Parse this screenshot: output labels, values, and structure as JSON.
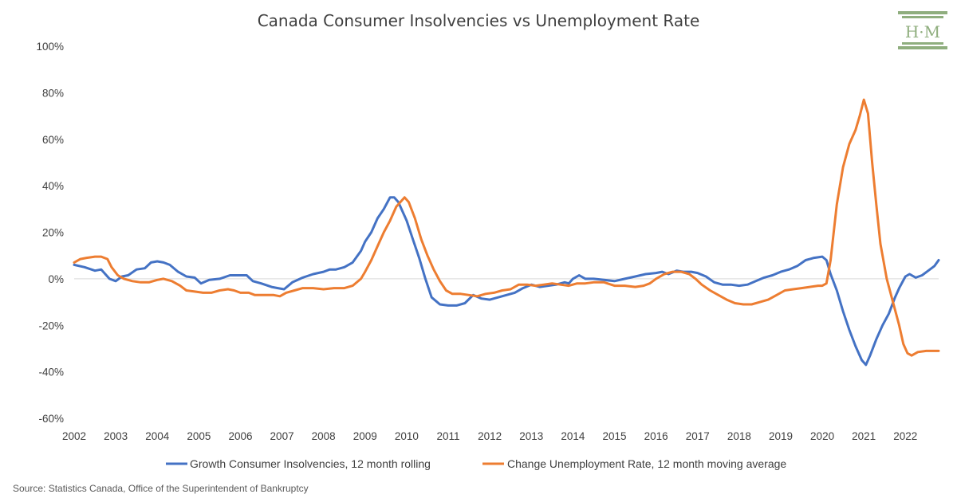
{
  "chart_data": {
    "type": "line",
    "title": "Canada Consumer Insolvencies vs Unemployment Rate",
    "xlabel": "",
    "ylabel": "",
    "x_range": [
      2002,
      2022.8
    ],
    "ylim": [
      -60,
      100
    ],
    "x_tick_labels": [
      "2002",
      "2003",
      "2004",
      "2005",
      "2006",
      "2007",
      "2008",
      "2009",
      "2010",
      "2011",
      "2012",
      "2013",
      "2014",
      "2015",
      "2016",
      "2017",
      "2018",
      "2019",
      "2020",
      "2021",
      "2022"
    ],
    "y_tick_labels": [
      "-60%",
      "-40%",
      "-20%",
      "0%",
      "20%",
      "40%",
      "60%",
      "80%",
      "100%"
    ],
    "y_ticks": [
      -60,
      -40,
      -20,
      0,
      20,
      40,
      60,
      80,
      100
    ],
    "grid": false,
    "legend_position": "bottom",
    "series": [
      {
        "name": "Growth Consumer Insolvencies, 12 month rolling",
        "color": "#4472c4",
        "points": [
          [
            2002.0,
            6
          ],
          [
            2002.25,
            5
          ],
          [
            2002.5,
            3.5
          ],
          [
            2002.65,
            4
          ],
          [
            2002.85,
            0
          ],
          [
            2003.0,
            -1
          ],
          [
            2003.15,
            1
          ],
          [
            2003.3,
            1.5
          ],
          [
            2003.5,
            4
          ],
          [
            2003.7,
            4.5
          ],
          [
            2003.85,
            7
          ],
          [
            2004.0,
            7.5
          ],
          [
            2004.15,
            7
          ],
          [
            2004.3,
            6
          ],
          [
            2004.5,
            3
          ],
          [
            2004.7,
            1
          ],
          [
            2004.9,
            0.5
          ],
          [
            2005.05,
            -2
          ],
          [
            2005.25,
            -0.5
          ],
          [
            2005.5,
            0
          ],
          [
            2005.75,
            1.5
          ],
          [
            2006.0,
            1.5
          ],
          [
            2006.15,
            1.5
          ],
          [
            2006.3,
            -1
          ],
          [
            2006.5,
            -2
          ],
          [
            2006.75,
            -3.5
          ],
          [
            2006.9,
            -4
          ],
          [
            2007.05,
            -4.5
          ],
          [
            2007.25,
            -1.5
          ],
          [
            2007.5,
            0.5
          ],
          [
            2007.75,
            2
          ],
          [
            2008.0,
            3
          ],
          [
            2008.15,
            4
          ],
          [
            2008.3,
            4
          ],
          [
            2008.5,
            5
          ],
          [
            2008.7,
            7
          ],
          [
            2008.9,
            12
          ],
          [
            2009.0,
            16
          ],
          [
            2009.15,
            20
          ],
          [
            2009.3,
            26
          ],
          [
            2009.45,
            30
          ],
          [
            2009.6,
            35
          ],
          [
            2009.7,
            35
          ],
          [
            2009.8,
            33
          ],
          [
            2009.9,
            29
          ],
          [
            2010.0,
            25
          ],
          [
            2010.15,
            17
          ],
          [
            2010.3,
            9
          ],
          [
            2010.45,
            0
          ],
          [
            2010.6,
            -8
          ],
          [
            2010.8,
            -11
          ],
          [
            2011.0,
            -11.5
          ],
          [
            2011.2,
            -11.5
          ],
          [
            2011.4,
            -10.5
          ],
          [
            2011.6,
            -7
          ],
          [
            2011.8,
            -8.5
          ],
          [
            2012.0,
            -9
          ],
          [
            2012.2,
            -8
          ],
          [
            2012.4,
            -7
          ],
          [
            2012.6,
            -6
          ],
          [
            2012.8,
            -4
          ],
          [
            2013.0,
            -2.5
          ],
          [
            2013.2,
            -3.5
          ],
          [
            2013.4,
            -3
          ],
          [
            2013.6,
            -2.5
          ],
          [
            2013.8,
            -1.5
          ],
          [
            2013.9,
            -2
          ],
          [
            2014.0,
            0
          ],
          [
            2014.15,
            1.5
          ],
          [
            2014.3,
            0
          ],
          [
            2014.5,
            0
          ],
          [
            2014.75,
            -0.5
          ],
          [
            2015.0,
            -1
          ],
          [
            2015.25,
            0
          ],
          [
            2015.5,
            1
          ],
          [
            2015.75,
            2
          ],
          [
            2016.0,
            2.5
          ],
          [
            2016.15,
            3
          ],
          [
            2016.3,
            2
          ],
          [
            2016.5,
            3.5
          ],
          [
            2016.65,
            3
          ],
          [
            2016.85,
            3
          ],
          [
            2017.0,
            2.5
          ],
          [
            2017.2,
            1
          ],
          [
            2017.4,
            -1.5
          ],
          [
            2017.6,
            -2.5
          ],
          [
            2017.8,
            -2.5
          ],
          [
            2018.0,
            -3
          ],
          [
            2018.2,
            -2.5
          ],
          [
            2018.4,
            -1
          ],
          [
            2018.6,
            0.5
          ],
          [
            2018.8,
            1.5
          ],
          [
            2019.0,
            3
          ],
          [
            2019.2,
            4
          ],
          [
            2019.4,
            5.5
          ],
          [
            2019.6,
            8
          ],
          [
            2019.8,
            9
          ],
          [
            2020.0,
            9.5
          ],
          [
            2020.1,
            8
          ],
          [
            2020.2,
            2
          ],
          [
            2020.35,
            -5
          ],
          [
            2020.5,
            -14
          ],
          [
            2020.65,
            -22
          ],
          [
            2020.8,
            -29
          ],
          [
            2020.95,
            -35
          ],
          [
            2021.05,
            -37
          ],
          [
            2021.15,
            -33
          ],
          [
            2021.3,
            -26
          ],
          [
            2021.45,
            -20
          ],
          [
            2021.6,
            -15
          ],
          [
            2021.75,
            -8
          ],
          [
            2021.85,
            -4
          ],
          [
            2022.0,
            1
          ],
          [
            2022.1,
            2
          ],
          [
            2022.25,
            0.5
          ],
          [
            2022.4,
            1.5
          ],
          [
            2022.55,
            3.5
          ],
          [
            2022.7,
            5.5
          ],
          [
            2022.8,
            8
          ]
        ]
      },
      {
        "name": "Change Unemployment Rate, 12 month moving average",
        "color": "#ed7d31",
        "points": [
          [
            2002.0,
            7
          ],
          [
            2002.15,
            8.5
          ],
          [
            2002.3,
            9
          ],
          [
            2002.5,
            9.5
          ],
          [
            2002.65,
            9.5
          ],
          [
            2002.8,
            8.5
          ],
          [
            2002.9,
            5
          ],
          [
            2003.05,
            1.5
          ],
          [
            2003.2,
            0
          ],
          [
            2003.4,
            -1
          ],
          [
            2003.6,
            -1.5
          ],
          [
            2003.8,
            -1.5
          ],
          [
            2004.0,
            -0.5
          ],
          [
            2004.15,
            0
          ],
          [
            2004.35,
            -1
          ],
          [
            2004.55,
            -3
          ],
          [
            2004.7,
            -5
          ],
          [
            2004.9,
            -5.5
          ],
          [
            2005.1,
            -6
          ],
          [
            2005.3,
            -6
          ],
          [
            2005.5,
            -5
          ],
          [
            2005.7,
            -4.5
          ],
          [
            2005.85,
            -5
          ],
          [
            2006.0,
            -6
          ],
          [
            2006.2,
            -6
          ],
          [
            2006.35,
            -7
          ],
          [
            2006.6,
            -7
          ],
          [
            2006.8,
            -7
          ],
          [
            2006.95,
            -7.5
          ],
          [
            2007.1,
            -6
          ],
          [
            2007.3,
            -5
          ],
          [
            2007.5,
            -4
          ],
          [
            2007.75,
            -4
          ],
          [
            2008.0,
            -4.5
          ],
          [
            2008.25,
            -4
          ],
          [
            2008.5,
            -4
          ],
          [
            2008.7,
            -3
          ],
          [
            2008.9,
            0
          ],
          [
            2009.0,
            3
          ],
          [
            2009.15,
            8
          ],
          [
            2009.3,
            14
          ],
          [
            2009.45,
            20
          ],
          [
            2009.6,
            25
          ],
          [
            2009.75,
            31
          ],
          [
            2009.9,
            34
          ],
          [
            2009.95,
            35
          ],
          [
            2010.05,
            33
          ],
          [
            2010.2,
            26
          ],
          [
            2010.35,
            17
          ],
          [
            2010.5,
            10
          ],
          [
            2010.65,
            4
          ],
          [
            2010.8,
            -1
          ],
          [
            2010.95,
            -5
          ],
          [
            2011.1,
            -6.5
          ],
          [
            2011.3,
            -6.5
          ],
          [
            2011.5,
            -7
          ],
          [
            2011.7,
            -7.5
          ],
          [
            2011.9,
            -6.5
          ],
          [
            2012.1,
            -6
          ],
          [
            2012.3,
            -5
          ],
          [
            2012.5,
            -4.5
          ],
          [
            2012.7,
            -2.5
          ],
          [
            2012.9,
            -2.5
          ],
          [
            2013.1,
            -3
          ],
          [
            2013.3,
            -2.5
          ],
          [
            2013.5,
            -2
          ],
          [
            2013.7,
            -2.5
          ],
          [
            2013.9,
            -3
          ],
          [
            2014.1,
            -2
          ],
          [
            2014.3,
            -2
          ],
          [
            2014.5,
            -1.5
          ],
          [
            2014.75,
            -1.5
          ],
          [
            2015.0,
            -3
          ],
          [
            2015.25,
            -3
          ],
          [
            2015.5,
            -3.5
          ],
          [
            2015.7,
            -3
          ],
          [
            2015.85,
            -2
          ],
          [
            2016.0,
            0
          ],
          [
            2016.2,
            2
          ],
          [
            2016.4,
            3
          ],
          [
            2016.6,
            3
          ],
          [
            2016.8,
            2
          ],
          [
            2016.95,
            0
          ],
          [
            2017.1,
            -2.5
          ],
          [
            2017.3,
            -5
          ],
          [
            2017.5,
            -7
          ],
          [
            2017.7,
            -9
          ],
          [
            2017.9,
            -10.5
          ],
          [
            2018.1,
            -11
          ],
          [
            2018.3,
            -11
          ],
          [
            2018.5,
            -10
          ],
          [
            2018.7,
            -9
          ],
          [
            2018.9,
            -7
          ],
          [
            2019.1,
            -5
          ],
          [
            2019.3,
            -4.5
          ],
          [
            2019.5,
            -4
          ],
          [
            2019.7,
            -3.5
          ],
          [
            2019.9,
            -3
          ],
          [
            2020.0,
            -3
          ],
          [
            2020.1,
            -2
          ],
          [
            2020.2,
            8
          ],
          [
            2020.35,
            32
          ],
          [
            2020.5,
            48
          ],
          [
            2020.65,
            58
          ],
          [
            2020.8,
            64
          ],
          [
            2020.9,
            70
          ],
          [
            2021.0,
            77
          ],
          [
            2021.1,
            71
          ],
          [
            2021.2,
            50
          ],
          [
            2021.3,
            32
          ],
          [
            2021.4,
            15
          ],
          [
            2021.55,
            0
          ],
          [
            2021.7,
            -10
          ],
          [
            2021.85,
            -20
          ],
          [
            2021.95,
            -28
          ],
          [
            2022.05,
            -32
          ],
          [
            2022.15,
            -33
          ],
          [
            2022.3,
            -31.5
          ],
          [
            2022.5,
            -31
          ],
          [
            2022.65,
            -31
          ],
          [
            2022.8,
            -31
          ]
        ]
      }
    ]
  },
  "source": "Source: Statistics Canada, Office of the Superintendent of Bankruptcy",
  "logo": {
    "text": "H·M",
    "color": "#8fae7e"
  }
}
